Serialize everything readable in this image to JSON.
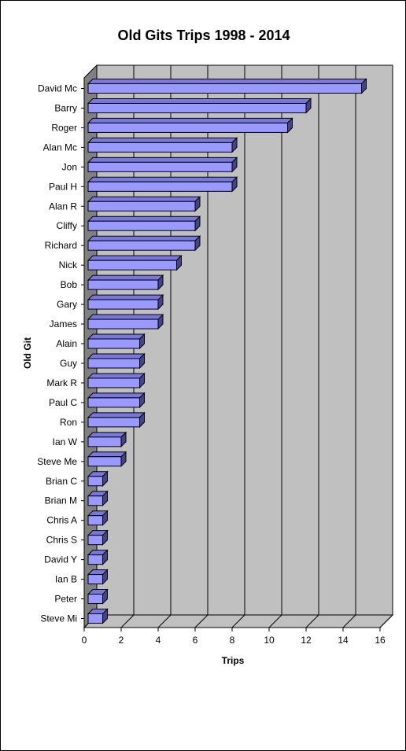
{
  "chart_data": {
    "type": "bar",
    "orientation": "horizontal",
    "style": "3d",
    "title": "Old Gits Trips 1998 - 2014",
    "xlabel": "Trips",
    "ylabel": "Old Git",
    "xlim": [
      0,
      16
    ],
    "x_ticks": [
      0,
      2,
      4,
      6,
      8,
      10,
      12,
      14,
      16
    ],
    "grid": true,
    "legend": "none",
    "categories": [
      "David Mc",
      "Barry",
      "Roger",
      "Alan Mc",
      "Jon",
      "Paul H",
      "Alan R",
      "Cliffy",
      "Richard",
      "Nick",
      "Bob",
      "Gary",
      "James",
      "Alain",
      "Guy",
      "Mark R",
      "Paul C",
      "Ron",
      "Ian W",
      "Steve Me",
      "Brian C",
      "Brian M",
      "Chris A",
      "Chris S",
      "David Y",
      "Ian B",
      "Peter",
      "Steve Mi"
    ],
    "values": [
      15,
      12,
      11,
      8,
      8,
      8,
      6,
      6,
      6,
      5,
      4,
      4,
      4,
      3,
      3,
      3,
      3,
      3,
      2,
      2,
      1,
      1,
      1,
      1,
      1,
      1,
      1,
      1
    ],
    "colors": {
      "bar_front": "#9999ff",
      "bar_top": "#7777dd",
      "bar_side": "#444488",
      "back_wall": "#c0c0c0",
      "side_wall": "#808080",
      "floor": "#c0c0c0"
    }
  }
}
